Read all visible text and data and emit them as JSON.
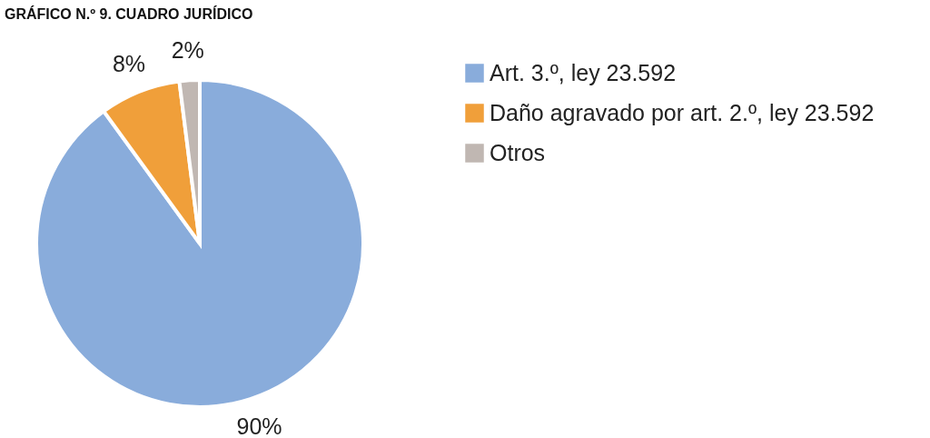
{
  "chart_data": {
    "type": "pie",
    "title": "GRÁFICO N.º 9. CUADRO JURÍDICO",
    "categories": [
      "Art. 3.º, ley 23.592",
      "Daño agravado por art. 2.º, ley 23.592",
      "Otros"
    ],
    "values": [
      90,
      8,
      2
    ],
    "value_labels": [
      "90%",
      "8%",
      "2%"
    ],
    "colors": [
      "#89acdb",
      "#f09f3a",
      "#c0b7b2"
    ],
    "legend": "right"
  }
}
